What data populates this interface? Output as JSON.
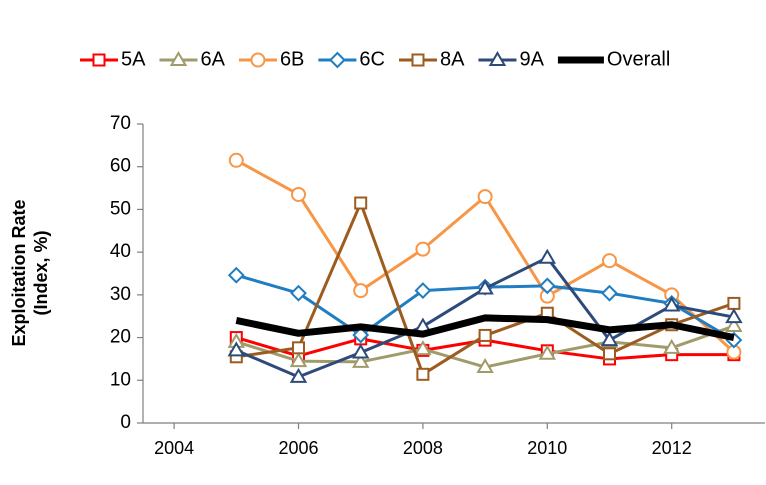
{
  "chart_data": {
    "type": "line",
    "ylabel_lines": [
      "Exploitation Rate",
      "(Index, %)"
    ],
    "x": [
      2005,
      2006,
      2007,
      2008,
      2009,
      2010,
      2011,
      2012,
      2013
    ],
    "xlim": [
      2003.5,
      2013.5
    ],
    "xticks": [
      2004,
      2006,
      2008,
      2010,
      2012
    ],
    "ylim": [
      0,
      70
    ],
    "yticks": [
      0,
      10,
      20,
      30,
      40,
      50,
      60,
      70
    ],
    "legend": "top",
    "series": [
      {
        "name": "5A",
        "color": "#ff0000",
        "marker": "square",
        "width": 3,
        "values": [
          20,
          15.7,
          19.7,
          17,
          19.4,
          16.9,
          15,
          16,
          16
        ]
      },
      {
        "name": "6A",
        "color": "#a19b6b",
        "marker": "triangle",
        "width": 3,
        "values": [
          19,
          14.5,
          14.3,
          17.3,
          13.1,
          16.2,
          19,
          17.6,
          22.7
        ]
      },
      {
        "name": "6B",
        "color": "#f79646",
        "marker": "circle",
        "width": 3,
        "values": [
          61.5,
          53.5,
          31,
          40.7,
          53,
          29.7,
          38,
          30,
          16.6
        ]
      },
      {
        "name": "6C",
        "color": "#1f7dc1",
        "marker": "diamond",
        "width": 3,
        "values": [
          34.6,
          30.4,
          20.6,
          31,
          31.8,
          32.1,
          30.4,
          28,
          19.4
        ]
      },
      {
        "name": "8A",
        "color": "#9c5b1f",
        "marker": "square",
        "width": 3,
        "values": [
          15.5,
          17.6,
          51.5,
          11.4,
          20.5,
          25.7,
          16.2,
          23,
          28
        ]
      },
      {
        "name": "9A",
        "color": "#2e4a7a",
        "marker": "triangle",
        "width": 3,
        "values": [
          17,
          10.8,
          16.5,
          22.6,
          31.5,
          38.7,
          19.4,
          27.5,
          24.8
        ]
      },
      {
        "name": "Overall",
        "color": "#000000",
        "marker": "none",
        "width": 7,
        "values": [
          24,
          21,
          22.5,
          20.8,
          24.6,
          24.2,
          21.8,
          23,
          20
        ]
      }
    ]
  }
}
